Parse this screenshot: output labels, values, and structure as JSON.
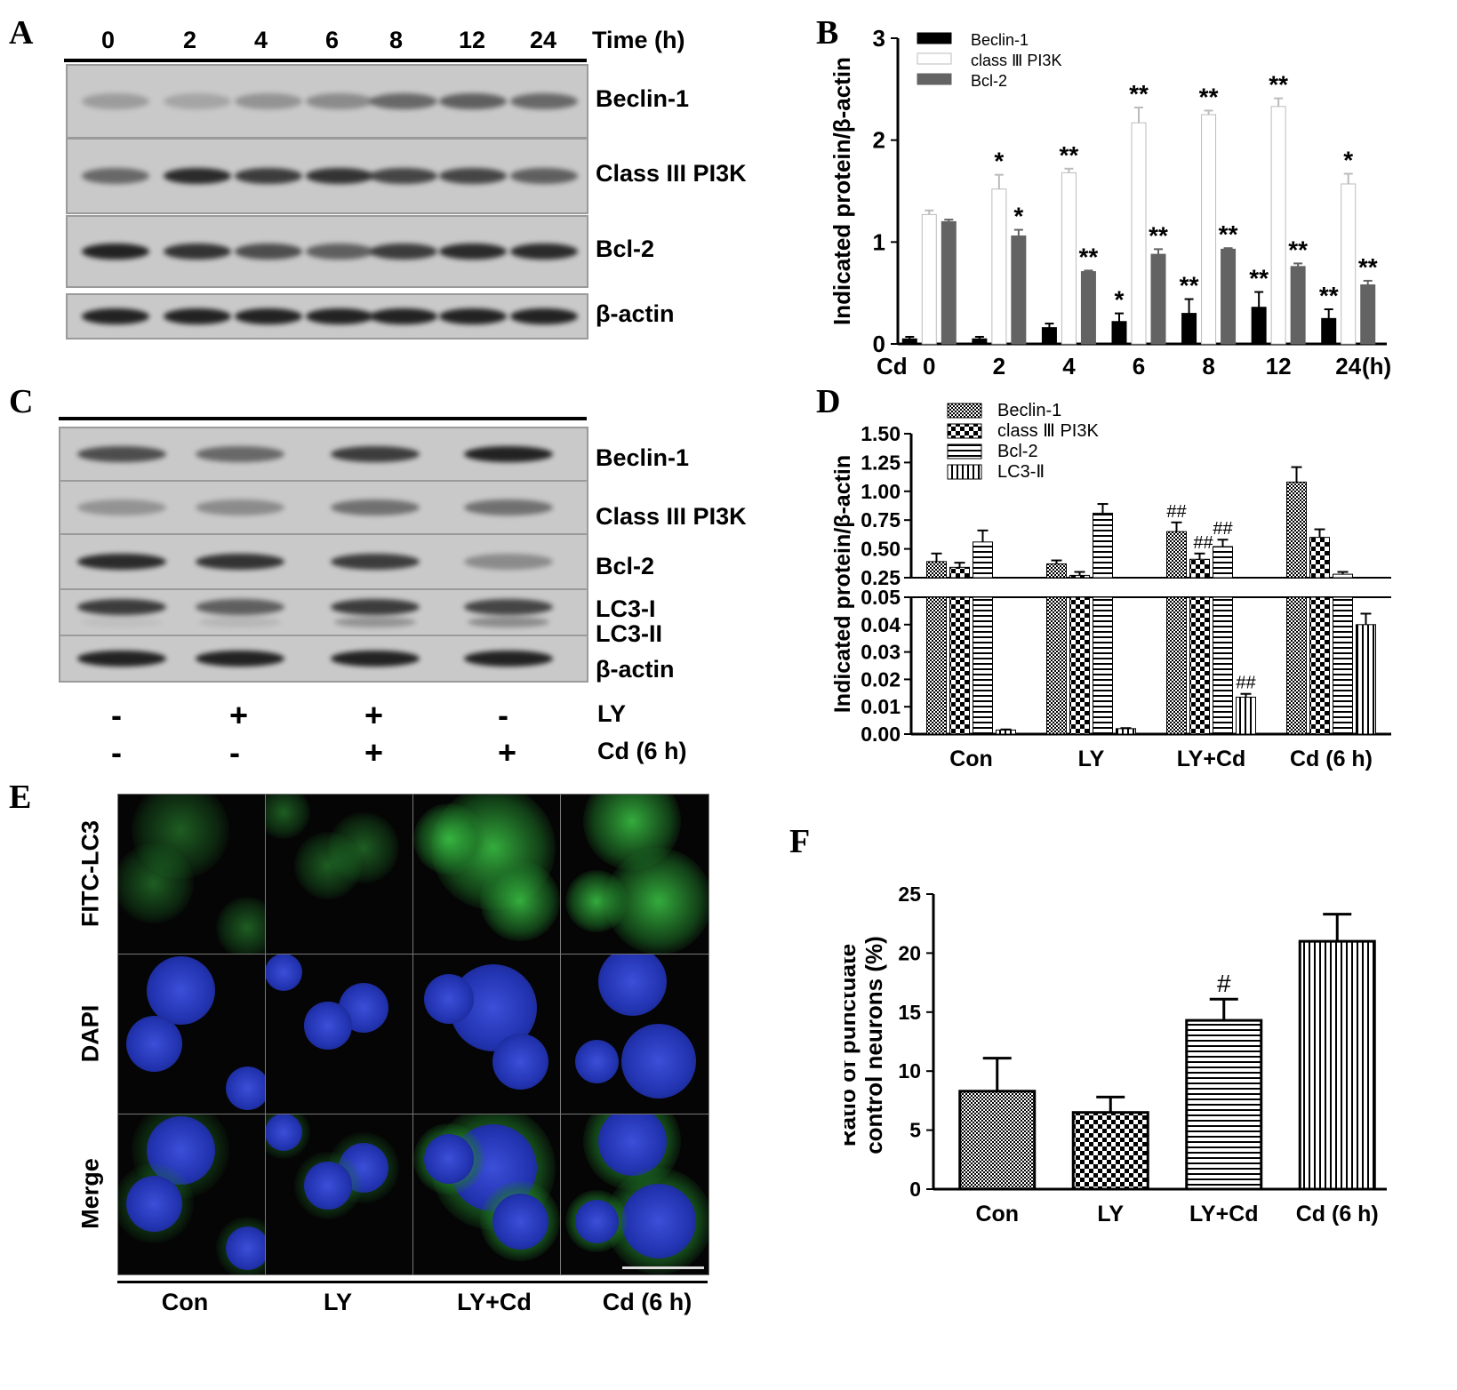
{
  "panels": {
    "a": "A",
    "b": "B",
    "c": "C",
    "d": "D",
    "e": "E",
    "f": "F"
  },
  "panelA": {
    "time_header": [
      "0",
      "2",
      "4",
      "6",
      "8",
      "12",
      "24"
    ],
    "time_unit": "Time (h)",
    "rows": [
      "Beclin-1",
      "Class III PI3K",
      "Bcl-2",
      "β-actin"
    ],
    "band_strength": {
      "Beclin-1": [
        0.25,
        0.2,
        0.3,
        0.35,
        0.55,
        0.6,
        0.55
      ],
      "Class III PI3K": [
        0.55,
        0.9,
        0.8,
        0.85,
        0.75,
        0.75,
        0.6
      ],
      "Bcl-2": [
        0.95,
        0.85,
        0.7,
        0.6,
        0.8,
        0.9,
        0.9
      ],
      "β-actin": [
        0.95,
        0.95,
        0.95,
        0.95,
        0.95,
        0.95,
        0.95
      ]
    }
  },
  "panelC": {
    "rows": [
      "Beclin-1",
      "Class III PI3K",
      "Bcl-2",
      "LC3-I",
      "LC3-II",
      "β-actin"
    ],
    "treat_labels": [
      "LY",
      "Cd (6 h)"
    ],
    "LY": [
      "-",
      "+",
      "+",
      "-"
    ],
    "Cd": [
      "-",
      "-",
      "+",
      "+"
    ],
    "band_strength": {
      "Beclin-1": [
        0.7,
        0.55,
        0.8,
        0.95
      ],
      "Class III PI3K": [
        0.3,
        0.35,
        0.5,
        0.5
      ],
      "Bcl-2": [
        0.9,
        0.85,
        0.8,
        0.35
      ],
      "LC3-I": [
        0.8,
        0.6,
        0.8,
        0.75
      ],
      "LC3-II": [
        0.05,
        0.1,
        0.3,
        0.35
      ],
      "β-actin": [
        0.95,
        0.95,
        0.95,
        0.95
      ]
    }
  },
  "panelE": {
    "row_labels": [
      "FITC-LC3",
      "DAPI",
      "Merge"
    ],
    "col_labels": [
      "Con",
      "LY",
      "LY+Cd",
      "Cd (6 h)"
    ]
  },
  "chart_data": [
    {
      "id": "B",
      "type": "bar",
      "ylabel": "Indicated protein/β-actin",
      "x_prefix": "Cd",
      "x_unit": "(h)",
      "categories": [
        "0",
        "2",
        "4",
        "6",
        "8",
        "12",
        "24"
      ],
      "ylim": [
        0,
        3
      ],
      "yticks": [
        "0",
        "1",
        "2",
        "3"
      ],
      "legend_position": "top-left",
      "series": [
        {
          "name": "Beclin-1",
          "color": "#000000",
          "values": [
            0.05,
            0.05,
            0.16,
            0.22,
            0.3,
            0.36,
            0.25
          ],
          "errors": [
            0.02,
            0.02,
            0.04,
            0.08,
            0.14,
            0.15,
            0.09
          ],
          "annotations": [
            "",
            "",
            "",
            "*",
            "**",
            "**",
            "**"
          ]
        },
        {
          "name": "class Ⅲ PI3K",
          "color": "#ffffff",
          "values": [
            1.27,
            1.52,
            1.68,
            2.17,
            2.25,
            2.33,
            1.57
          ],
          "errors": [
            0.04,
            0.14,
            0.04,
            0.15,
            0.04,
            0.08,
            0.1
          ],
          "annotations": [
            "",
            "*",
            "**",
            "**",
            "**",
            "**",
            "*"
          ]
        },
        {
          "name": "Bcl-2",
          "color": "#636363",
          "values": [
            1.2,
            1.06,
            0.71,
            0.88,
            0.93,
            0.76,
            0.58
          ],
          "errors": [
            0.02,
            0.06,
            0.01,
            0.05,
            0.01,
            0.03,
            0.04
          ],
          "annotations": [
            "",
            "*",
            "**",
            "**",
            "**",
            "**",
            "**"
          ]
        }
      ]
    },
    {
      "id": "D",
      "type": "bar",
      "ylabel": "Indicated protein/β-actin",
      "categories": [
        "Con",
        "LY",
        "LY+Cd",
        "Cd (6 h)"
      ],
      "y_break": true,
      "ylim_lower": [
        0,
        0.05
      ],
      "ylim_upper": [
        0.25,
        1.5
      ],
      "yticks_lower": [
        "0.00",
        "0.01",
        "0.02",
        "0.03",
        "0.04",
        "0.05"
      ],
      "yticks_upper": [
        "0.25",
        "0.50",
        "0.75",
        "1.00",
        "1.25",
        "1.50"
      ],
      "legend_position": "top-left",
      "series": [
        {
          "name": "Beclin-1",
          "pattern": "fine-check",
          "values": [
            0.39,
            0.37,
            0.65,
            1.08
          ],
          "errors": [
            0.07,
            0.03,
            0.08,
            0.13
          ],
          "annotations": [
            "",
            "",
            "##",
            ""
          ]
        },
        {
          "name": "class Ⅲ PI3K",
          "pattern": "checker",
          "values": [
            0.34,
            0.27,
            0.41,
            0.6
          ],
          "errors": [
            0.04,
            0.03,
            0.05,
            0.07
          ],
          "annotations": [
            "",
            "",
            "##",
            ""
          ]
        },
        {
          "name": "Bcl-2",
          "pattern": "horizontal",
          "values": [
            0.56,
            0.81,
            0.52,
            0.28
          ],
          "errors": [
            0.1,
            0.08,
            0.06,
            0.02
          ],
          "annotations": [
            "",
            "",
            "##",
            ""
          ]
        },
        {
          "name": "LC3-Ⅱ",
          "pattern": "vertical",
          "values": [
            0.0015,
            0.002,
            0.0135,
            0.04
          ],
          "errors": [
            0.0002,
            0.0002,
            0.0012,
            0.004
          ],
          "annotations": [
            "",
            "",
            "##",
            ""
          ]
        }
      ]
    },
    {
      "id": "F",
      "type": "bar",
      "ylabel_lines": [
        "Ratio of punctuate",
        "control neurons (%)"
      ],
      "categories": [
        "Con",
        "LY",
        "LY+Cd",
        "Cd (6 h)"
      ],
      "ylim": [
        0,
        25
      ],
      "yticks": [
        "0",
        "5",
        "10",
        "15",
        "20",
        "25"
      ],
      "series": [
        {
          "values": [
            8.3,
            6.5,
            14.3,
            21.0
          ],
          "errors": [
            2.8,
            1.3,
            1.8,
            2.3
          ],
          "patterns": [
            "fine-check",
            "checker",
            "horizontal",
            "vertical"
          ],
          "annotations": [
            "",
            "",
            "#",
            ""
          ]
        }
      ]
    }
  ]
}
